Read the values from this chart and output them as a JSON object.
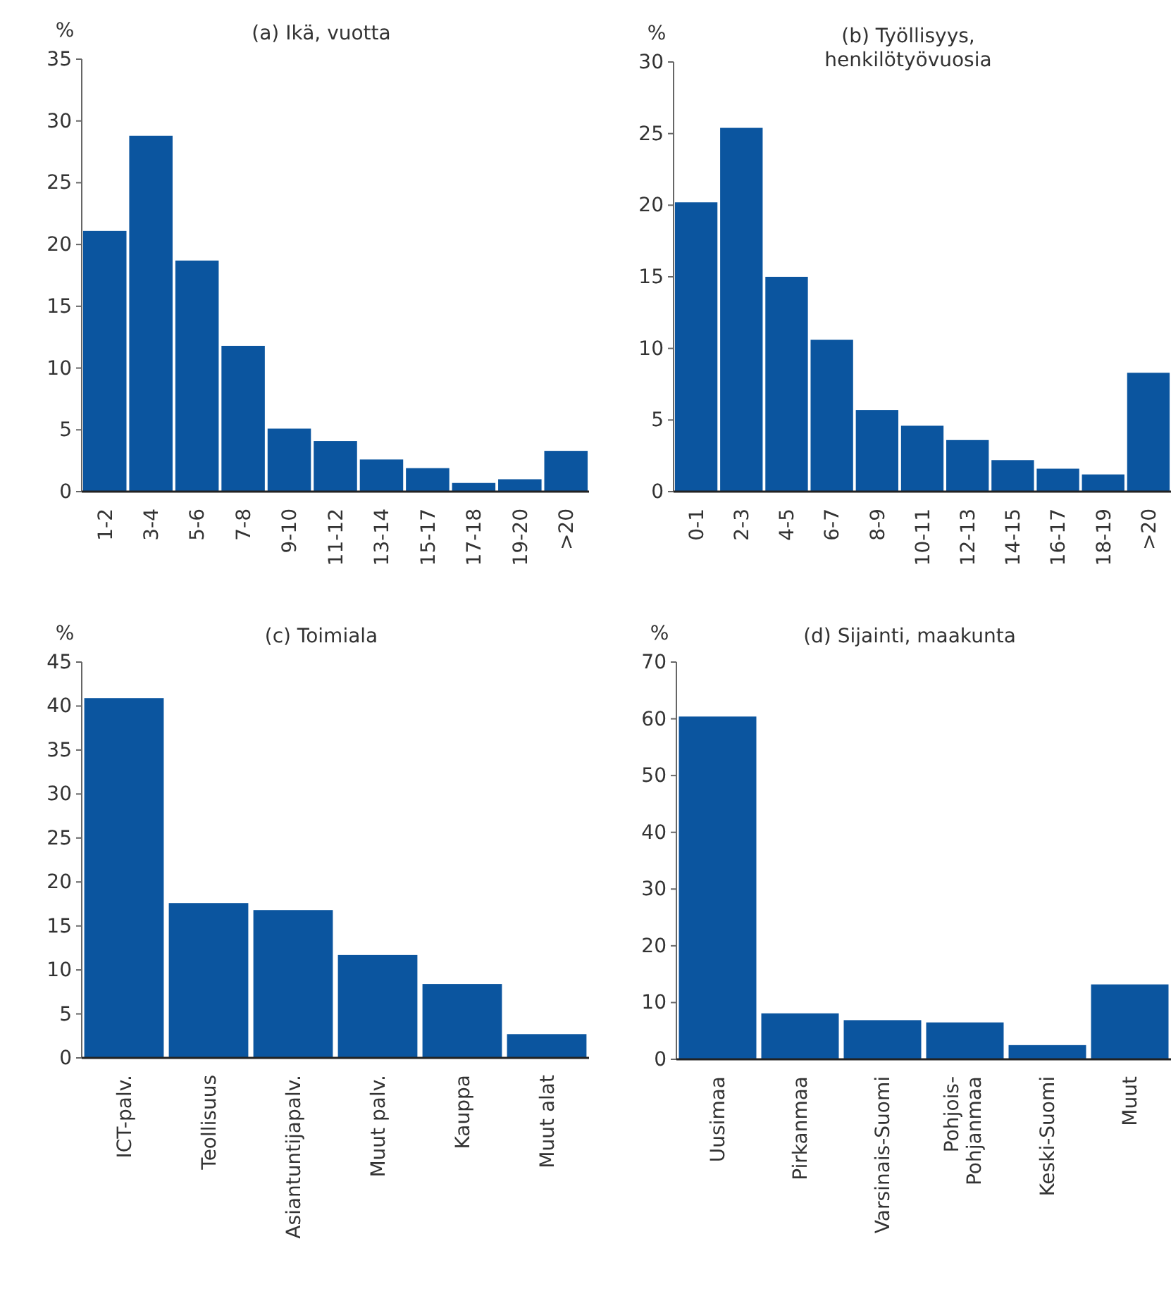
{
  "chart_data": [
    {
      "type": "bar",
      "title": "(a) Ikä, vuotta",
      "ylabel": "%",
      "categories": [
        "1-2",
        "3-4",
        "5-6",
        "7-8",
        "9-10",
        "11-12",
        "13-14",
        "15-17",
        "17-18",
        "19-20",
        ">20"
      ],
      "values": [
        21.1,
        28.8,
        18.7,
        11.8,
        5.1,
        4.1,
        2.6,
        1.9,
        0.7,
        1.0,
        3.3
      ],
      "color": "#0b559f",
      "ylim": [
        0,
        35
      ],
      "yticks": [
        0,
        5,
        10,
        15,
        20,
        25,
        30,
        35
      ]
    },
    {
      "type": "bar",
      "title": "(b) Työllisyys, henkilötyövuosia",
      "ylabel": "%",
      "categories": [
        "0-1",
        "2-3",
        "4-5",
        "6-7",
        "8-9",
        "10-11",
        "12-13",
        "14-15",
        "16-17",
        "18-19",
        ">20"
      ],
      "values": [
        20.2,
        25.4,
        15.0,
        10.6,
        5.7,
        4.6,
        3.6,
        2.2,
        1.6,
        1.2,
        8.3
      ],
      "color": "#0b559f",
      "ylim": [
        0,
        30
      ],
      "yticks": [
        0,
        5,
        10,
        15,
        20,
        25,
        30
      ]
    },
    {
      "type": "bar",
      "title": "(c) Toimiala",
      "ylabel": "%",
      "categories": [
        "ICT-palv.",
        "Teollisuus",
        "Asiantuntijapalv.",
        "Muut palv.",
        "Kauppa",
        "Muut alat"
      ],
      "values": [
        40.9,
        17.6,
        16.8,
        11.7,
        8.4,
        2.7
      ],
      "color": "#0b559f",
      "ylim": [
        0,
        45
      ],
      "yticks": [
        0,
        5,
        10,
        15,
        20,
        25,
        30,
        35,
        40,
        45
      ]
    },
    {
      "type": "bar",
      "title": "(d) Sijainti, maakunta",
      "ylabel": "%",
      "categories": [
        "Uusimaa",
        "Pirkanmaa",
        "Varsinais-Suomi",
        "Pohjois-Pohjanmaa",
        "Keski-Suomi",
        "Muut"
      ],
      "values": [
        60.4,
        8.1,
        6.9,
        6.5,
        2.5,
        13.2
      ],
      "color": "#0b559f",
      "ylim": [
        0,
        70
      ],
      "yticks": [
        0,
        10,
        20,
        30,
        40,
        50,
        60,
        70
      ]
    }
  ]
}
